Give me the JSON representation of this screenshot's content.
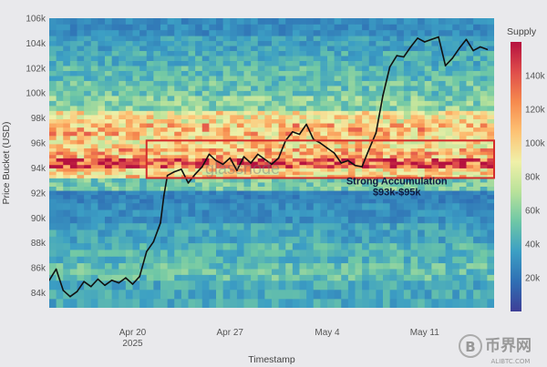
{
  "chart_data": {
    "type": "heatmap",
    "title": "",
    "xlabel": "Timestamp",
    "ylabel": "Price Bucket (USD)",
    "ylim": [
      82800,
      106000
    ],
    "y_ticks": [
      84000,
      86000,
      88000,
      90000,
      92000,
      94000,
      96000,
      98000,
      100000,
      102000,
      104000,
      106000
    ],
    "y_tick_labels": [
      "84k",
      "86k",
      "88k",
      "90k",
      "92k",
      "94k",
      "96k",
      "98k",
      "100k",
      "102k",
      "104k",
      "106k"
    ],
    "x_ticks": [
      {
        "date": "2025-04-20",
        "label": "Apr 20",
        "sublabel": "2025"
      },
      {
        "date": "2025-04-27",
        "label": "Apr 27",
        "sublabel": ""
      },
      {
        "date": "2025-05-04",
        "label": "May 4",
        "sublabel": ""
      },
      {
        "date": "2025-05-11",
        "label": "May 11",
        "sublabel": ""
      }
    ],
    "x_range": [
      "2025-04-14",
      "2025-05-16"
    ],
    "colorbar": {
      "label": "Supply",
      "range": [
        0,
        160000
      ],
      "ticks": [
        20000,
        40000,
        60000,
        80000,
        100000,
        120000,
        140000
      ],
      "tick_labels": [
        "20k",
        "40k",
        "60k",
        "80k",
        "100k",
        "120k",
        "140k"
      ],
      "colors": [
        "#3e3f97",
        "#2f6fb4",
        "#3c9fc4",
        "#6ec7a6",
        "#b9e29a",
        "#f0f0a8",
        "#fdc274",
        "#f68a4e",
        "#df4d4b",
        "#b5113f"
      ]
    },
    "heatmap_bands": [
      {
        "from": 82800,
        "to": 85000,
        "supply": 40000
      },
      {
        "from": 85000,
        "to": 86400,
        "supply": 50000
      },
      {
        "from": 86400,
        "to": 88000,
        "supply": 45000
      },
      {
        "from": 88000,
        "to": 89600,
        "supply": 38000
      },
      {
        "from": 89600,
        "to": 91200,
        "supply": 30000
      },
      {
        "from": 91200,
        "to": 92200,
        "supply": 25000
      },
      {
        "from": 92200,
        "to": 93200,
        "supply": 55000
      },
      {
        "from": 93200,
        "to": 94000,
        "supply": 100000
      },
      {
        "from": 94000,
        "to": 94800,
        "supply": 135000
      },
      {
        "from": 94800,
        "to": 95600,
        "supply": 110000
      },
      {
        "from": 95600,
        "to": 96600,
        "supply": 98000
      },
      {
        "from": 96600,
        "to": 97600,
        "supply": 108000
      },
      {
        "from": 97600,
        "to": 98600,
        "supply": 92000
      },
      {
        "from": 98600,
        "to": 99800,
        "supply": 60000
      },
      {
        "from": 99800,
        "to": 101000,
        "supply": 52000
      },
      {
        "from": 101000,
        "to": 102200,
        "supply": 48000
      },
      {
        "from": 102200,
        "to": 103400,
        "supply": 42000
      },
      {
        "from": 103400,
        "to": 104600,
        "supply": 36000
      },
      {
        "from": 104600,
        "to": 106000,
        "supply": 28000
      }
    ],
    "series": [
      {
        "type": "line",
        "color": "#111111",
        "points": [
          [
            "2025-04-14T00:00",
            85000
          ],
          [
            "2025-04-14T12:00",
            85900
          ],
          [
            "2025-04-15T00:00",
            84200
          ],
          [
            "2025-04-15T12:00",
            83700
          ],
          [
            "2025-04-16T00:00",
            84100
          ],
          [
            "2025-04-16T12:00",
            84900
          ],
          [
            "2025-04-17T00:00",
            84500
          ],
          [
            "2025-04-17T12:00",
            85100
          ],
          [
            "2025-04-18T00:00",
            84600
          ],
          [
            "2025-04-18T12:00",
            85000
          ],
          [
            "2025-04-19T00:00",
            84800
          ],
          [
            "2025-04-19T12:00",
            85200
          ],
          [
            "2025-04-20T00:00",
            84700
          ],
          [
            "2025-04-20T12:00",
            85300
          ],
          [
            "2025-04-21T00:00",
            87300
          ],
          [
            "2025-04-21T12:00",
            88100
          ],
          [
            "2025-04-22T00:00",
            89600
          ],
          [
            "2025-04-22T06:00",
            91800
          ],
          [
            "2025-04-22T12:00",
            93400
          ],
          [
            "2025-04-23T00:00",
            93700
          ],
          [
            "2025-04-23T12:00",
            93900
          ],
          [
            "2025-04-24T00:00",
            92800
          ],
          [
            "2025-04-24T12:00",
            93500
          ],
          [
            "2025-04-25T00:00",
            94100
          ],
          [
            "2025-04-25T12:00",
            95100
          ],
          [
            "2025-04-26T00:00",
            94600
          ],
          [
            "2025-04-26T12:00",
            94300
          ],
          [
            "2025-04-27T00:00",
            94800
          ],
          [
            "2025-04-27T12:00",
            93800
          ],
          [
            "2025-04-28T00:00",
            94900
          ],
          [
            "2025-04-28T12:00",
            94400
          ],
          [
            "2025-04-29T00:00",
            95100
          ],
          [
            "2025-04-29T12:00",
            94700
          ],
          [
            "2025-04-30T00:00",
            94300
          ],
          [
            "2025-04-30T12:00",
            94800
          ],
          [
            "2025-05-01T00:00",
            96200
          ],
          [
            "2025-05-01T12:00",
            96900
          ],
          [
            "2025-05-02T00:00",
            96700
          ],
          [
            "2025-05-02T12:00",
            97500
          ],
          [
            "2025-05-03T00:00",
            96300
          ],
          [
            "2025-05-03T12:00",
            96000
          ],
          [
            "2025-05-04T00:00",
            95600
          ],
          [
            "2025-05-04T12:00",
            95200
          ],
          [
            "2025-05-05T00:00",
            94400
          ],
          [
            "2025-05-05T12:00",
            94600
          ],
          [
            "2025-05-06T00:00",
            94200
          ],
          [
            "2025-05-06T12:00",
            94100
          ],
          [
            "2025-05-07T00:00",
            95500
          ],
          [
            "2025-05-07T12:00",
            96800
          ],
          [
            "2025-05-08T00:00",
            99800
          ],
          [
            "2025-05-08T12:00",
            102100
          ],
          [
            "2025-05-09T00:00",
            103000
          ],
          [
            "2025-05-09T12:00",
            102900
          ],
          [
            "2025-05-10T00:00",
            103700
          ],
          [
            "2025-05-10T12:00",
            104400
          ],
          [
            "2025-05-11T00:00",
            104100
          ],
          [
            "2025-05-11T12:00",
            104300
          ],
          [
            "2025-05-12T00:00",
            104500
          ],
          [
            "2025-05-12T12:00",
            102200
          ],
          [
            "2025-05-13T00:00",
            102800
          ],
          [
            "2025-05-13T12:00",
            103600
          ],
          [
            "2025-05-14T00:00",
            104300
          ],
          [
            "2025-05-14T12:00",
            103400
          ],
          [
            "2025-05-15T00:00",
            103700
          ],
          [
            "2025-05-15T12:00",
            103500
          ]
        ]
      }
    ],
    "highlight_box": {
      "x_from": "2025-04-21T00:00",
      "x_to": "2025-05-16T00:00",
      "y_from": 93200,
      "y_to": 96200,
      "color": "#d42c2c"
    },
    "annotations": [
      {
        "text": "Strong Accumulation",
        "x": "2025-05-09T00:00",
        "y": 92700
      },
      {
        "text": "$93k-$95k",
        "x": "2025-05-09T00:00",
        "y": 91800
      }
    ],
    "watermark": "glassnode"
  },
  "branding": {
    "cn_text": "币界网",
    "url_text": "ALIBTC.COM"
  }
}
